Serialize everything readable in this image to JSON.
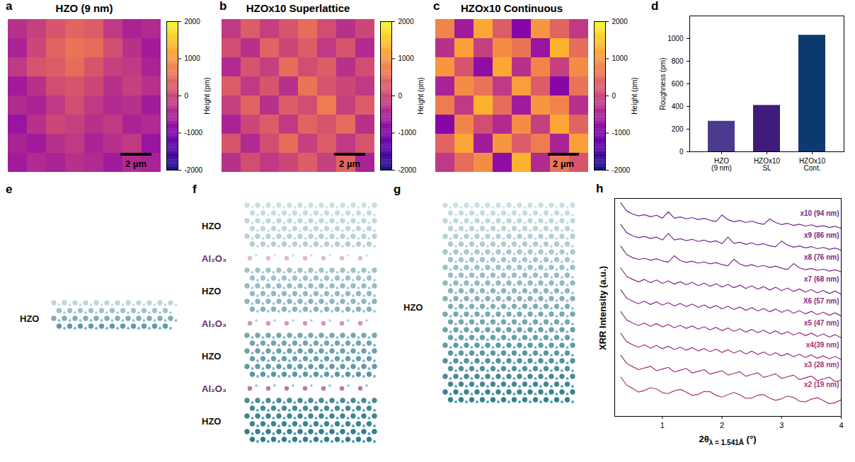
{
  "chart_data": [
    {
      "panel": "a",
      "type": "heatmap",
      "title": "HZO (9 nm)",
      "color": "plasma",
      "tick_labels": false,
      "scale_bar": "2 µm",
      "zlabel": "Height (pm)",
      "zlim": [
        -2000,
        2000
      ],
      "zticks": [
        -2000,
        -1000,
        0,
        1000,
        2000
      ],
      "z": [
        [
          -300,
          -100,
          200,
          400,
          300,
          -200,
          -500,
          -400
        ],
        [
          -500,
          0,
          400,
          600,
          500,
          100,
          -300,
          -600
        ],
        [
          -200,
          200,
          300,
          500,
          200,
          -100,
          -200,
          -500
        ],
        [
          -600,
          -300,
          100,
          200,
          0,
          -300,
          -100,
          -300
        ],
        [
          -400,
          -500,
          -200,
          100,
          -200,
          -400,
          -300,
          -600
        ],
        [
          -700,
          -300,
          0,
          -100,
          -300,
          -200,
          -500,
          -400
        ],
        [
          -500,
          -600,
          -300,
          -200,
          -500,
          -300,
          -200,
          -700
        ],
        [
          -600,
          -400,
          -500,
          -300,
          -400,
          -600,
          -400,
          -500
        ]
      ]
    },
    {
      "panel": "b",
      "type": "heatmap",
      "title": "HZOx10 Superlattice",
      "color": "plasma",
      "tick_labels": false,
      "scale_bar": "2 µm",
      "zlabel": "Height (pm)",
      "zlim": [
        -2000,
        2000
      ],
      "zticks": [
        -2000,
        -1000,
        0,
        1000,
        2000
      ],
      "z": [
        [
          -200,
          300,
          -100,
          200,
          500,
          100,
          -300,
          0
        ],
        [
          100,
          -300,
          400,
          0,
          300,
          -200,
          200,
          -400
        ],
        [
          -400,
          200,
          -100,
          500,
          100,
          300,
          -300,
          100
        ],
        [
          300,
          -200,
          200,
          -300,
          600,
          200,
          0,
          -200
        ],
        [
          -100,
          400,
          -300,
          300,
          100,
          700,
          -100,
          300
        ],
        [
          -500,
          0,
          300,
          -200,
          400,
          200,
          500,
          -300
        ],
        [
          200,
          -400,
          100,
          500,
          -100,
          300,
          -200,
          200
        ],
        [
          -300,
          100,
          -200,
          0,
          300,
          -100,
          400,
          -500
        ]
      ]
    },
    {
      "panel": "c",
      "type": "heatmap",
      "title": "HZOx10 Continuous",
      "color": "plasma",
      "tick_labels": false,
      "scale_bar": "2 µm",
      "zlabel": "Height (pm)",
      "zlim": [
        -2000,
        2000
      ],
      "zticks": [
        -2000,
        -1000,
        0,
        1000,
        2000
      ],
      "z": [
        [
          800,
          -600,
          1200,
          300,
          -900,
          1000,
          400,
          -200
        ],
        [
          -300,
          1100,
          -100,
          900,
          600,
          -700,
          1300,
          500
        ],
        [
          1000,
          200,
          -800,
          1200,
          -300,
          800,
          -100,
          900
        ],
        [
          -500,
          900,
          600,
          -200,
          1100,
          300,
          -900,
          600
        ],
        [
          700,
          -200,
          1300,
          500,
          -600,
          1000,
          800,
          -300
        ],
        [
          -900,
          800,
          100,
          -400,
          900,
          -100,
          1200,
          400
        ],
        [
          400,
          1200,
          -600,
          1000,
          300,
          700,
          -500,
          1100
        ],
        [
          -200,
          500,
          900,
          -800,
          1300,
          -400,
          600,
          200
        ]
      ]
    },
    {
      "panel": "d",
      "type": "bar",
      "categories": [
        "HZO (9 nm)",
        "HZOx10 SL",
        "HZOx10 Cont."
      ],
      "values": [
        270,
        410,
        1030
      ],
      "colors": [
        "#4b3a8e",
        "#3f1b7c",
        "#0d3a6e"
      ],
      "ylabel": "Roughness (pm)",
      "ylim": [
        0,
        1200
      ],
      "yticks": [
        0,
        200,
        400,
        600,
        800,
        1000
      ],
      "grid": false
    },
    {
      "panel": "h",
      "type": "line",
      "ylabel": "XRR Intensity (a.u.)",
      "xlabel": {
        "text": "2θ",
        "subscript": "λ = 1.541Å",
        "unit": "(°)"
      },
      "xlim": [
        0.2,
        4
      ],
      "xticks": [
        1,
        2,
        3,
        4
      ],
      "ylim": [
        0,
        10.5
      ],
      "tick_labels": "x",
      "x": [
        0.3,
        0.4,
        0.5,
        0.6,
        0.7,
        0.8,
        0.9,
        1.0,
        1.1,
        1.2,
        1.3,
        1.4,
        1.5,
        1.6,
        1.7,
        1.8,
        1.9,
        2.0,
        2.1,
        2.2,
        2.3,
        2.4,
        2.5,
        2.6,
        2.7,
        2.8,
        2.9,
        3.0,
        3.1,
        3.2,
        3.3,
        3.4,
        3.5,
        3.6,
        3.7,
        3.8,
        3.9,
        4.0
      ],
      "series": [
        {
          "name": "x10 (94 nm)",
          "color": "#6b2a8e",
          "values": [
            10.3,
            9.9,
            9.75,
            9.66,
            9.72,
            9.62,
            9.69,
            9.55,
            9.86,
            9.55,
            9.61,
            9.52,
            9.58,
            9.48,
            9.54,
            9.45,
            9.39,
            9.7,
            9.48,
            9.38,
            9.44,
            9.34,
            9.41,
            9.31,
            9.25,
            9.51,
            9.34,
            9.24,
            9.3,
            9.2,
            9.26,
            9.17,
            9.23,
            9.13,
            9.19,
            9.1,
            9.16,
            9.06
          ]
        },
        {
          "name": "x9 (86 nm)",
          "color": "#72298c",
          "values": [
            9.25,
            8.85,
            8.7,
            8.61,
            8.67,
            8.57,
            8.64,
            8.5,
            8.81,
            8.5,
            8.56,
            8.47,
            8.53,
            8.43,
            8.49,
            8.4,
            8.46,
            8.32,
            8.64,
            8.33,
            8.39,
            8.29,
            8.36,
            8.26,
            8.32,
            8.22,
            8.17,
            8.45,
            8.25,
            8.15,
            8.21,
            8.12,
            8.18,
            8.08,
            8.14,
            8.05,
            8.11,
            8.01
          ]
        },
        {
          "name": "x8 (76 nm)",
          "color": "#7a2a8a",
          "values": [
            8.2,
            7.8,
            7.65,
            7.56,
            7.62,
            7.52,
            7.59,
            7.49,
            7.43,
            7.74,
            7.51,
            7.42,
            7.48,
            7.38,
            7.44,
            7.35,
            7.41,
            7.31,
            7.26,
            7.57,
            7.34,
            7.24,
            7.31,
            7.21,
            7.27,
            7.17,
            7.24,
            7.14,
            7.08,
            7.36,
            7.16,
            7.07,
            7.13,
            7.03,
            7.09,
            7.0,
            7.06,
            6.96
          ]
        },
        {
          "name": "x7 (68 nm)",
          "color": "#832b88",
          "values": [
            7.15,
            6.75,
            6.6,
            6.48,
            6.6,
            6.44,
            6.57,
            6.41,
            6.53,
            6.37,
            6.49,
            6.34,
            6.46,
            6.3,
            6.42,
            6.27,
            6.39,
            6.23,
            6.36,
            6.2,
            6.32,
            6.16,
            6.29,
            6.13,
            6.25,
            6.09,
            6.22,
            6.06,
            6.18,
            6.02,
            6.14,
            5.99,
            6.11,
            5.95,
            6.07,
            5.92,
            6.04,
            5.88
          ]
        },
        {
          "name": "X6 (57 nm)",
          "color": "#8c2c86",
          "values": [
            6.1,
            5.7,
            5.55,
            5.43,
            5.55,
            5.39,
            5.52,
            5.36,
            5.48,
            5.32,
            5.44,
            5.29,
            5.41,
            5.25,
            5.37,
            5.22,
            5.34,
            5.18,
            5.31,
            5.15,
            5.27,
            5.11,
            5.24,
            5.08,
            5.2,
            5.04,
            5.17,
            5.01,
            5.13,
            4.97,
            5.09,
            4.94,
            5.06,
            4.9,
            5.02,
            4.87,
            4.99,
            4.83
          ]
        },
        {
          "name": "x5 (47 nm)",
          "color": "#952e84",
          "values": [
            5.05,
            4.65,
            4.5,
            4.38,
            4.5,
            4.34,
            4.47,
            4.31,
            4.43,
            4.27,
            4.39,
            4.24,
            4.36,
            4.2,
            4.32,
            4.17,
            4.29,
            4.13,
            4.26,
            4.1,
            4.22,
            4.06,
            4.19,
            4.03,
            4.15,
            3.99,
            4.12,
            3.96,
            4.08,
            3.92,
            4.04,
            3.89,
            4.01,
            3.85,
            3.97,
            3.82,
            3.94,
            3.78
          ]
        },
        {
          "name": "x4(39 nm)",
          "color": "#9d3082",
          "values": [
            4.0,
            3.6,
            3.45,
            3.33,
            3.45,
            3.29,
            3.42,
            3.26,
            3.38,
            3.22,
            3.34,
            3.19,
            3.31,
            3.15,
            3.27,
            3.12,
            3.24,
            3.08,
            3.21,
            3.05,
            3.17,
            3.01,
            3.14,
            2.98,
            3.1,
            2.94,
            3.07,
            2.91,
            3.03,
            2.87,
            2.99,
            2.84,
            2.96,
            2.8,
            2.92,
            2.77,
            2.89,
            2.73
          ]
        },
        {
          "name": "x3 (28 nm)",
          "color": "#a5317f",
          "values": [
            2.95,
            2.55,
            2.4,
            2.25,
            2.33,
            2.41,
            2.2,
            2.28,
            2.36,
            2.14,
            2.22,
            2.31,
            2.09,
            2.17,
            2.25,
            2.04,
            2.12,
            2.2,
            1.99,
            2.07,
            2.15,
            1.93,
            2.02,
            2.1,
            1.88,
            1.96,
            2.05,
            1.83,
            1.91,
            1.99,
            1.77,
            1.86,
            1.94,
            1.72,
            1.8,
            1.89,
            1.67,
            1.75
          ]
        },
        {
          "name": "x2 (19 nm)",
          "color": "#ad337c",
          "values": [
            1.9,
            1.5,
            1.35,
            1.17,
            1.25,
            1.38,
            1.32,
            1.14,
            1.1,
            1.23,
            1.3,
            1.17,
            1.01,
            1.06,
            1.2,
            1.19,
            1.01,
            0.93,
            1.05,
            1.15,
            1.04,
            0.87,
            0.88,
            1.02,
            1.05,
            0.88,
            0.77,
            0.85,
            0.98,
            0.91,
            0.73,
            0.7,
            0.83,
            0.9,
            0.76,
            0.61,
            0.66,
            0.8
          ]
        }
      ]
    }
  ],
  "diagrams": [
    {
      "panel": "e",
      "layers": [
        {
          "label": "HZO",
          "type": "host"
        }
      ]
    },
    {
      "panel": "f",
      "layers": [
        {
          "label": "HZO",
          "type": "host"
        },
        {
          "label": "Al₂O₃",
          "type": "interlayer"
        },
        {
          "label": "HZO",
          "type": "host"
        },
        {
          "label": "Al₂O₃",
          "type": "interlayer"
        },
        {
          "label": "HZO",
          "type": "host"
        },
        {
          "label": "Al₂O₃",
          "type": "interlayer"
        },
        {
          "label": "HZO",
          "type": "host"
        }
      ]
    },
    {
      "panel": "g",
      "layers": [
        {
          "label": "HZO",
          "type": "host"
        }
      ]
    }
  ]
}
